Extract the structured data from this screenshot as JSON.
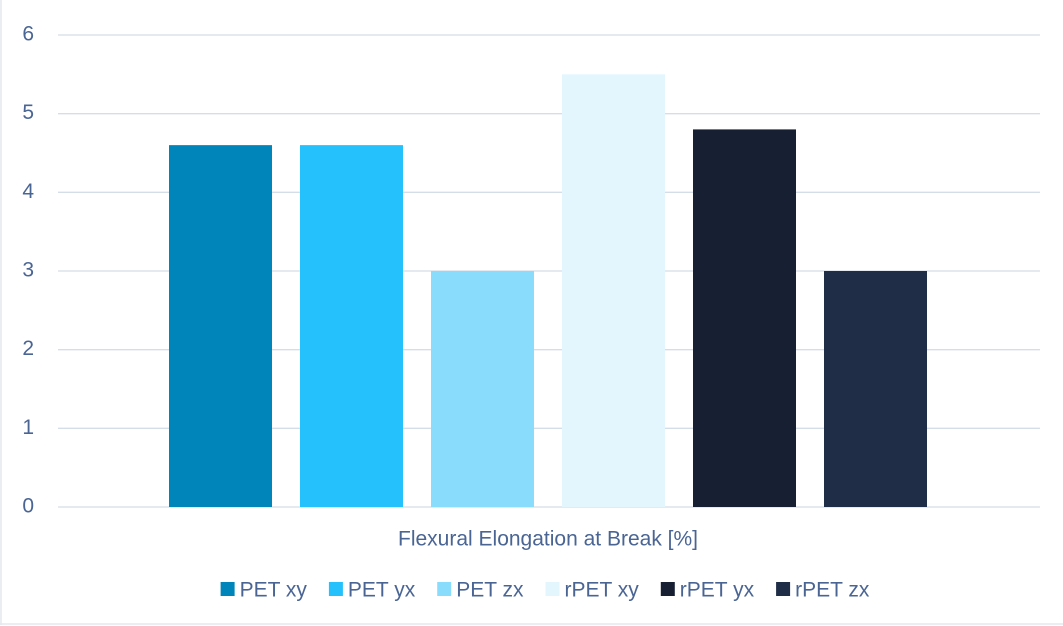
{
  "chart_data": {
    "type": "bar",
    "categories": [
      "Flexural Elongation at Break [%]"
    ],
    "series": [
      {
        "name": "PET xy",
        "color": "#0085ba",
        "values": [
          4.6
        ]
      },
      {
        "name": "PET yx",
        "color": "#25c1fc",
        "values": [
          4.6
        ]
      },
      {
        "name": "PET zx",
        "color": "#8adcfd",
        "values": [
          3.0
        ]
      },
      {
        "name": "rPET xy",
        "color": "#e3f6fd",
        "values": [
          5.5
        ]
      },
      {
        "name": "rPET yx",
        "color": "#172033",
        "values": [
          4.8
        ]
      },
      {
        "name": "rPET zx",
        "color": "#202d47",
        "values": [
          3.0
        ]
      }
    ],
    "ylim": [
      0,
      6
    ],
    "yticks": [
      0,
      1,
      2,
      3,
      4,
      5,
      6
    ],
    "grid": true,
    "legend": "bottom"
  }
}
